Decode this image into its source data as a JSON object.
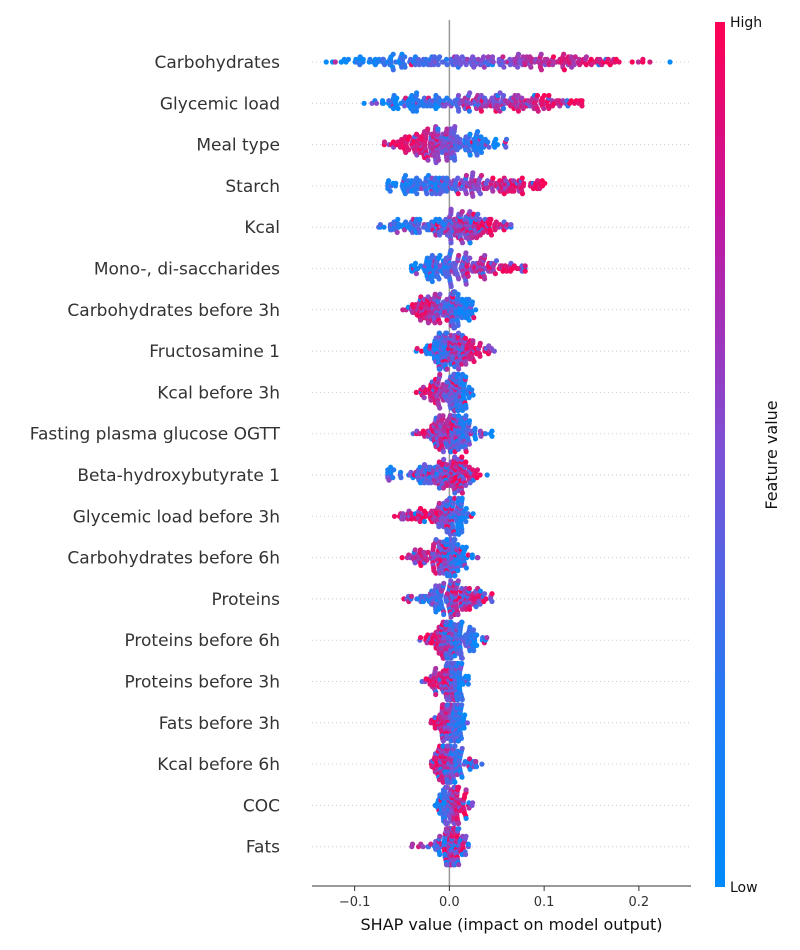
{
  "chart_data": {
    "type": "scatter",
    "subtype": "shap-beeswarm-summary",
    "xlabel": "SHAP value (impact on model output)",
    "xlim": [
      -0.145,
      0.255
    ],
    "x_ticks": [
      {
        "value": -0.1,
        "label": "−0.1"
      },
      {
        "value": 0.0,
        "label": "0.0"
      },
      {
        "value": 0.1,
        "label": "0.1"
      },
      {
        "value": 0.2,
        "label": "0.2"
      }
    ],
    "zero_line": true,
    "grid": false,
    "colorbar": {
      "title": "Feature value",
      "high_label": "High",
      "low_label": "Low",
      "low_color": "#008bfb",
      "mid_color": "#7c52d6",
      "high_color": "#ff0052"
    },
    "features": [
      {
        "name": "Carbohydrates",
        "min": -0.13,
        "max": 0.24,
        "low_cluster": -0.09,
        "high_cluster": 0.17,
        "low_spread": 0.025,
        "high_spread": 0.03,
        "density": 1.0
      },
      {
        "name": "Glycemic load",
        "min": -0.09,
        "max": 0.14,
        "low_cluster": -0.05,
        "high_cluster": 0.11,
        "low_spread": 0.025,
        "high_spread": 0.025,
        "density": 0.95
      },
      {
        "name": "Meal type",
        "min": -0.07,
        "max": 0.065,
        "low_cluster": 0.035,
        "high_cluster": -0.045,
        "low_spread": 0.013,
        "high_spread": 0.013,
        "density": 0.9
      },
      {
        "name": "Starch",
        "min": -0.065,
        "max": 0.105,
        "low_cluster": -0.045,
        "high_cluster": 0.075,
        "low_spread": 0.02,
        "high_spread": 0.02,
        "density": 0.85
      },
      {
        "name": "Kcal",
        "min": -0.08,
        "max": 0.065,
        "low_cluster": -0.03,
        "high_cluster": 0.04,
        "low_spread": 0.025,
        "high_spread": 0.018,
        "density": 0.85
      },
      {
        "name": "Mono-, di-saccharides",
        "min": -0.04,
        "max": 0.08,
        "low_cluster": -0.025,
        "high_cluster": 0.05,
        "low_spread": 0.012,
        "high_spread": 0.02,
        "density": 0.75
      },
      {
        "name": "Carbohydrates before 3h",
        "min": -0.05,
        "max": 0.03,
        "low_cluster": 0.02,
        "high_cluster": -0.03,
        "low_spread": 0.006,
        "high_spread": 0.012,
        "density": 0.7
      },
      {
        "name": "Fructosamine 1",
        "min": -0.035,
        "max": 0.05,
        "low_cluster": -0.015,
        "high_cluster": 0.02,
        "low_spread": 0.01,
        "high_spread": 0.013,
        "density": 0.7
      },
      {
        "name": "Kcal before 3h",
        "min": -0.035,
        "max": 0.025,
        "low_cluster": 0.018,
        "high_cluster": -0.02,
        "low_spread": 0.005,
        "high_spread": 0.01,
        "density": 0.6
      },
      {
        "name": "Fasting plasma glucose OGTT",
        "min": -0.04,
        "max": 0.045,
        "low_cluster": 0.02,
        "high_cluster": -0.015,
        "low_spread": 0.012,
        "high_spread": 0.012,
        "density": 0.7
      },
      {
        "name": "Beta-hydroxybutyrate 1",
        "min": -0.065,
        "max": 0.04,
        "low_cluster": -0.03,
        "high_cluster": 0.015,
        "low_spread": 0.02,
        "high_spread": 0.012,
        "density": 0.7
      },
      {
        "name": "Glycemic load before 3h",
        "min": -0.06,
        "max": 0.025,
        "low_cluster": 0.015,
        "high_cluster": -0.03,
        "low_spread": 0.006,
        "high_spread": 0.014,
        "density": 0.6
      },
      {
        "name": "Carbohydrates before 6h",
        "min": -0.05,
        "max": 0.03,
        "low_cluster": 0.012,
        "high_cluster": -0.025,
        "low_spread": 0.008,
        "high_spread": 0.012,
        "density": 0.65
      },
      {
        "name": "Proteins",
        "min": -0.05,
        "max": 0.045,
        "low_cluster": -0.015,
        "high_cluster": 0.02,
        "low_spread": 0.015,
        "high_spread": 0.012,
        "density": 0.65
      },
      {
        "name": "Proteins before 6h",
        "min": -0.035,
        "max": 0.04,
        "low_cluster": 0.02,
        "high_cluster": -0.015,
        "low_spread": 0.01,
        "high_spread": 0.01,
        "density": 0.65
      },
      {
        "name": "Proteins before 3h",
        "min": -0.03,
        "max": 0.02,
        "low_cluster": 0.013,
        "high_cluster": -0.012,
        "low_spread": 0.005,
        "high_spread": 0.008,
        "density": 0.55
      },
      {
        "name": "Fats before 3h",
        "min": -0.02,
        "max": 0.02,
        "low_cluster": 0.014,
        "high_cluster": -0.013,
        "low_spread": 0.004,
        "high_spread": 0.005,
        "density": 0.5
      },
      {
        "name": "Kcal before 6h",
        "min": -0.02,
        "max": 0.035,
        "low_cluster": 0.015,
        "high_cluster": -0.012,
        "low_spread": 0.01,
        "high_spread": 0.005,
        "density": 0.55
      },
      {
        "name": "COC",
        "min": -0.015,
        "max": 0.025,
        "low_cluster": -0.01,
        "high_cluster": 0.013,
        "low_spread": 0.003,
        "high_spread": 0.004,
        "density": 0.5
      },
      {
        "name": "Fats",
        "min": -0.04,
        "max": 0.02,
        "low_cluster": -0.005,
        "high_cluster": 0.005,
        "low_spread": 0.01,
        "high_spread": 0.005,
        "density": 0.55
      }
    ]
  }
}
